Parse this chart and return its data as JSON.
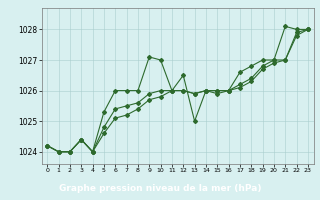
{
  "x": [
    0,
    1,
    2,
    3,
    4,
    5,
    6,
    7,
    8,
    9,
    10,
    11,
    12,
    13,
    14,
    15,
    16,
    17,
    18,
    19,
    20,
    21,
    22,
    23
  ],
  "line1": [
    1024.2,
    1024.0,
    1024.0,
    1024.4,
    1024.0,
    1025.3,
    1026.0,
    1026.0,
    1026.0,
    1027.1,
    1027.0,
    1026.0,
    1026.5,
    1025.0,
    1026.0,
    1025.9,
    1026.0,
    1026.6,
    1026.8,
    1027.0,
    1027.0,
    1028.1,
    1028.0,
    1028.0
  ],
  "line2": [
    1024.2,
    1024.0,
    1024.0,
    1024.4,
    1024.0,
    1024.8,
    1025.4,
    1025.5,
    1025.6,
    1025.9,
    1026.0,
    1026.0,
    1026.0,
    1025.9,
    1026.0,
    1026.0,
    1026.0,
    1026.2,
    1026.4,
    1026.8,
    1027.0,
    1027.0,
    1027.9,
    1028.0
  ],
  "line3": [
    1024.2,
    1024.0,
    1024.0,
    1024.4,
    1024.0,
    1024.6,
    1025.1,
    1025.2,
    1025.4,
    1025.7,
    1025.8,
    1026.0,
    1026.0,
    1025.9,
    1026.0,
    1026.0,
    1026.0,
    1026.1,
    1026.3,
    1026.7,
    1026.9,
    1027.0,
    1027.8,
    1028.0
  ],
  "line_color": "#2d6a2d",
  "bg_color": "#d8f0f0",
  "grid_color": "#aacece",
  "ylim": [
    1023.6,
    1028.7
  ],
  "yticks": [
    1024,
    1025,
    1026,
    1027,
    1028
  ],
  "xticks": [
    0,
    1,
    2,
    3,
    4,
    5,
    6,
    7,
    8,
    9,
    10,
    11,
    12,
    13,
    14,
    15,
    16,
    17,
    18,
    19,
    20,
    21,
    22,
    23
  ],
  "xlabel": "Graphe pression niveau de la mer (hPa)",
  "xlabel_bg": "#3d6e3d",
  "xlabel_text_color": "#ffffff"
}
